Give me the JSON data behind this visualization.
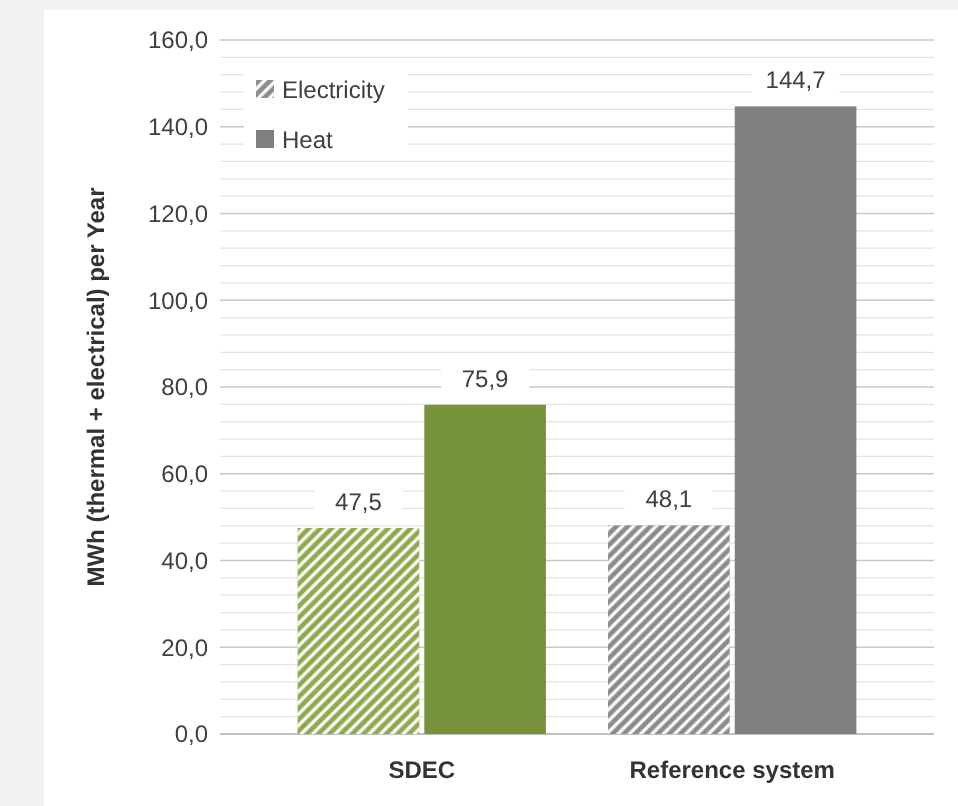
{
  "chart_data": {
    "type": "bar",
    "ylabel": "MWh (thermal + electrical) per Year",
    "categories": [
      "SDEC",
      "Reference system"
    ],
    "series": [
      {
        "name": "Electricity",
        "color": "#8c8c8c",
        "colors": [
          "#8faa4e",
          "#8c8c8c"
        ],
        "values": [
          47.5,
          48.1
        ]
      },
      {
        "name": "Heat",
        "color": "#7f7f7f",
        "colors": [
          "#77933c",
          "#808080"
        ],
        "values": [
          75.9,
          144.7
        ]
      }
    ],
    "ylim": [
      0,
      160
    ],
    "yticks": [
      {
        "value": 0,
        "label": "0,0"
      },
      {
        "value": 4,
        "label": null
      },
      {
        "value": 8,
        "label": null
      },
      {
        "value": 12,
        "label": null
      },
      {
        "value": 16,
        "label": null
      },
      {
        "value": 20,
        "label": "20,0"
      },
      {
        "value": 24,
        "label": null
      },
      {
        "value": 28,
        "label": null
      },
      {
        "value": 32,
        "label": null
      },
      {
        "value": 36,
        "label": null
      },
      {
        "value": 40,
        "label": "40,0"
      },
      {
        "value": 44,
        "label": null
      },
      {
        "value": 48,
        "label": null
      },
      {
        "value": 52,
        "label": null
      },
      {
        "value": 56,
        "label": null
      },
      {
        "value": 60,
        "label": "60,0"
      },
      {
        "value": 64,
        "label": null
      },
      {
        "value": 68,
        "label": null
      },
      {
        "value": 72,
        "label": null
      },
      {
        "value": 76,
        "label": null
      },
      {
        "value": 80,
        "label": "80,0"
      },
      {
        "value": 84,
        "label": null
      },
      {
        "value": 88,
        "label": null
      },
      {
        "value": 92,
        "label": null
      },
      {
        "value": 96,
        "label": null
      },
      {
        "value": 100,
        "label": "100,0"
      },
      {
        "value": 104,
        "label": null
      },
      {
        "value": 108,
        "label": null
      },
      {
        "value": 112,
        "label": null
      },
      {
        "value": 116,
        "label": null
      },
      {
        "value": 120,
        "label": "120,0"
      },
      {
        "value": 124,
        "label": null
      },
      {
        "value": 128,
        "label": null
      },
      {
        "value": 132,
        "label": null
      },
      {
        "value": 136,
        "label": null
      },
      {
        "value": 140,
        "label": "140,0"
      },
      {
        "value": 144,
        "label": null
      },
      {
        "value": 148,
        "label": null
      },
      {
        "value": 152,
        "label": null
      },
      {
        "value": 156,
        "label": null
      },
      {
        "value": 160,
        "label": "160,0"
      }
    ],
    "value_labels": [
      [
        "47,5",
        "48,1"
      ],
      [
        "75,9",
        "144,7"
      ]
    ],
    "grid": true,
    "legend": "top left"
  }
}
